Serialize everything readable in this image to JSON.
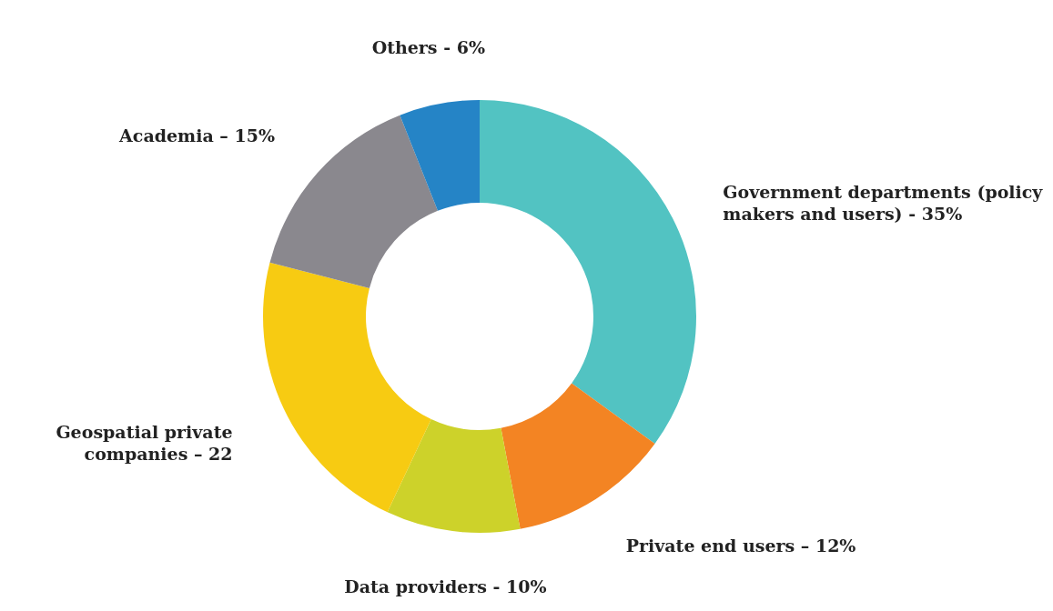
{
  "chart_data": {
    "type": "donut",
    "categories": [
      "Government departments (policy makers and users)  - 35%",
      "Private end users – 12%",
      "Data providers - 10%",
      "Geospatial private companies – 22",
      "Academia – 15%",
      "Others - 6%"
    ],
    "values": [
      35,
      12,
      10,
      22,
      15,
      6
    ],
    "colors": [
      "#52c3c2",
      "#f38423",
      "#cdd22a",
      "#f7cb12",
      "#8a888e",
      "#2584c6"
    ]
  }
}
